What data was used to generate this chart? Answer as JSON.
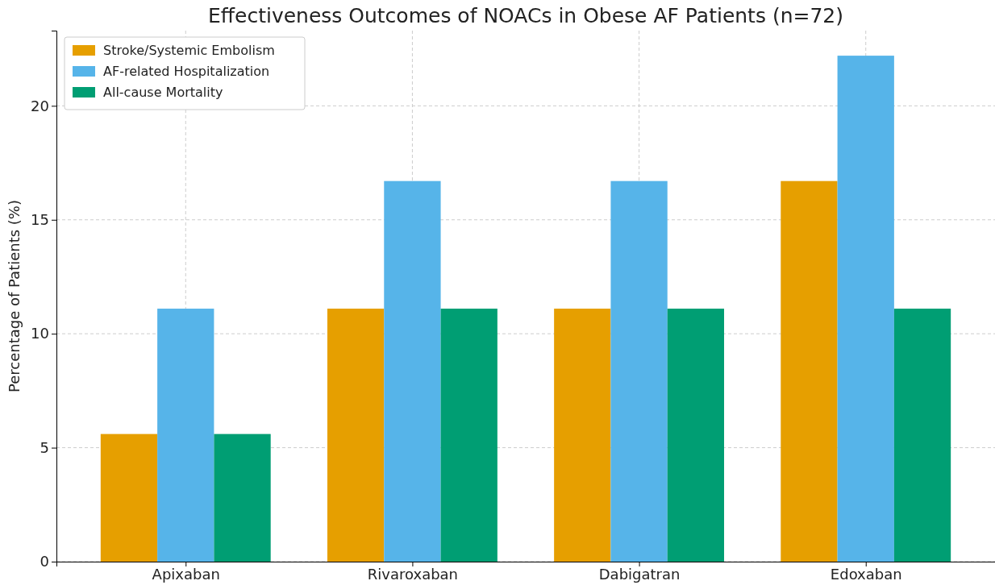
{
  "chart_data": {
    "type": "bar",
    "title": "Effectiveness Outcomes of NOACs in Obese AF Patients (n=72)",
    "ylabel": "Percentage of Patients (%)",
    "categories": [
      "Apixaban",
      "Rivaroxaban",
      "Dabigatran",
      "Edoxaban"
    ],
    "series": [
      {
        "name": "Stroke/Systemic Embolism",
        "color": "#e69f00",
        "values": [
          5.6,
          11.1,
          11.1,
          16.7
        ]
      },
      {
        "name": "AF-related Hospitalization",
        "color": "#56b4e9",
        "values": [
          11.1,
          16.7,
          16.7,
          22.2
        ]
      },
      {
        "name": "All-cause Mortality",
        "color": "#009e73",
        "values": [
          5.6,
          11.1,
          11.1,
          11.1
        ]
      }
    ],
    "ylim": [
      0,
      23.3
    ],
    "yticks": [
      0,
      5,
      10,
      15,
      20
    ],
    "grid": true,
    "legend": "top left"
  }
}
